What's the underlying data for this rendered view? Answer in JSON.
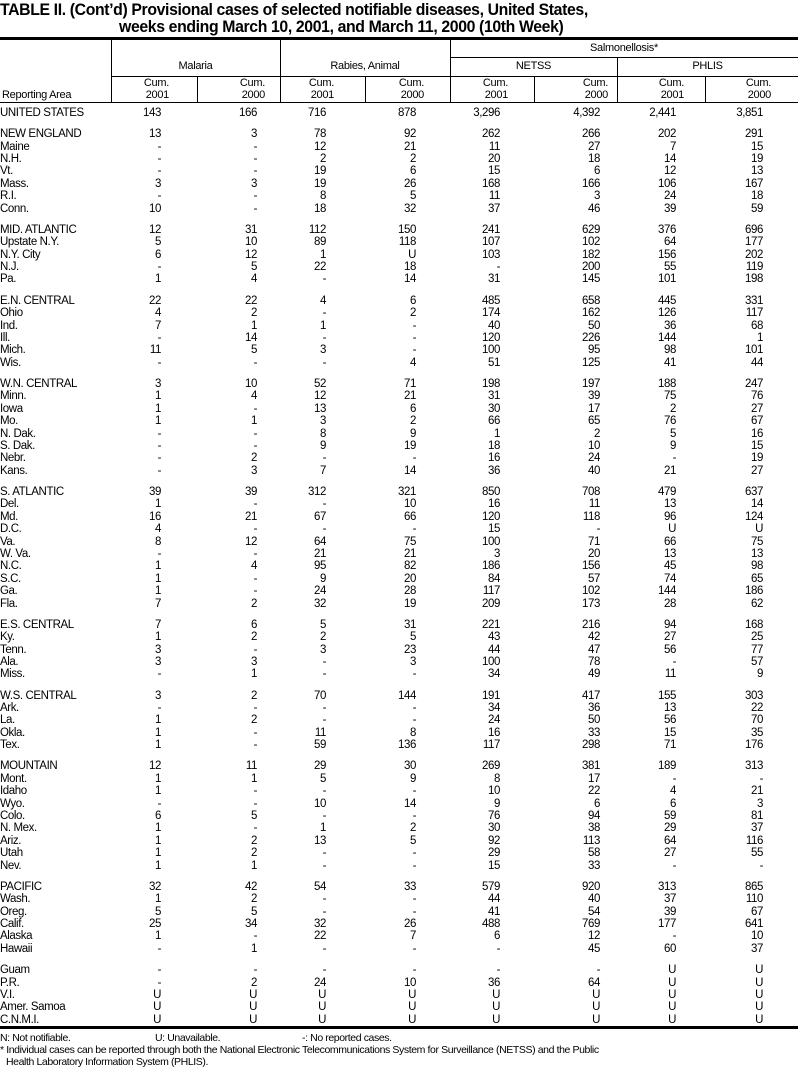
{
  "title": {
    "line1": "TABLE II. (Cont’d) Provisional cases of selected notifiable diseases, United States,",
    "line2": "weeks ending March 10, 2001, and March 11, 2000 (10th Week)"
  },
  "header": {
    "reporting_area": "Reporting Area",
    "malaria": "Malaria",
    "rabies": "Rabies, Animal",
    "salmonellosis": "Salmonellosis*",
    "netss": "NETSS",
    "phlis": "PHLIS",
    "cum_label": "Cum.",
    "years": [
      "2001",
      "2000",
      "2001",
      "2000",
      "2001",
      "2000",
      "2001",
      "2000"
    ]
  },
  "total_row": [
    "UNITED STATES",
    "143",
    "166",
    "716",
    "878",
    "3,296",
    "4,392",
    "2,441",
    "3,851"
  ],
  "groups": [
    [
      [
        "NEW ENGLAND",
        "13",
        "3",
        "78",
        "92",
        "262",
        "266",
        "202",
        "291"
      ],
      [
        "Maine",
        "-",
        "-",
        "12",
        "21",
        "11",
        "27",
        "7",
        "15"
      ],
      [
        "N.H.",
        "-",
        "-",
        "2",
        "2",
        "20",
        "18",
        "14",
        "19"
      ],
      [
        "Vt.",
        "-",
        "-",
        "19",
        "6",
        "15",
        "6",
        "12",
        "13"
      ],
      [
        "Mass.",
        "3",
        "3",
        "19",
        "26",
        "168",
        "166",
        "106",
        "167"
      ],
      [
        "R.I.",
        "-",
        "-",
        "8",
        "5",
        "11",
        "3",
        "24",
        "18"
      ],
      [
        "Conn.",
        "10",
        "-",
        "18",
        "32",
        "37",
        "46",
        "39",
        "59"
      ]
    ],
    [
      [
        "MID. ATLANTIC",
        "12",
        "31",
        "112",
        "150",
        "241",
        "629",
        "376",
        "696"
      ],
      [
        "Upstate N.Y.",
        "5",
        "10",
        "89",
        "118",
        "107",
        "102",
        "64",
        "177"
      ],
      [
        "N.Y. City",
        "6",
        "12",
        "1",
        "U",
        "103",
        "182",
        "156",
        "202"
      ],
      [
        "N.J.",
        "-",
        "5",
        "22",
        "18",
        "-",
        "200",
        "55",
        "119"
      ],
      [
        "Pa.",
        "1",
        "4",
        "-",
        "14",
        "31",
        "145",
        "101",
        "198"
      ]
    ],
    [
      [
        "E.N. CENTRAL",
        "22",
        "22",
        "4",
        "6",
        "485",
        "658",
        "445",
        "331"
      ],
      [
        "Ohio",
        "4",
        "2",
        "-",
        "2",
        "174",
        "162",
        "126",
        "117"
      ],
      [
        "Ind.",
        "7",
        "1",
        "1",
        "-",
        "40",
        "50",
        "36",
        "68"
      ],
      [
        "Ill.",
        "-",
        "14",
        "-",
        "-",
        "120",
        "226",
        "144",
        "1"
      ],
      [
        "Mich.",
        "11",
        "5",
        "3",
        "-",
        "100",
        "95",
        "98",
        "101"
      ],
      [
        "Wis.",
        "-",
        "-",
        "-",
        "4",
        "51",
        "125",
        "41",
        "44"
      ]
    ],
    [
      [
        "W.N. CENTRAL",
        "3",
        "10",
        "52",
        "71",
        "198",
        "197",
        "188",
        "247"
      ],
      [
        "Minn.",
        "1",
        "4",
        "12",
        "21",
        "31",
        "39",
        "75",
        "76"
      ],
      [
        "Iowa",
        "1",
        "-",
        "13",
        "6",
        "30",
        "17",
        "2",
        "27"
      ],
      [
        "Mo.",
        "1",
        "1",
        "3",
        "2",
        "66",
        "65",
        "76",
        "67"
      ],
      [
        "N. Dak.",
        "-",
        "-",
        "8",
        "9",
        "1",
        "2",
        "5",
        "16"
      ],
      [
        "S. Dak.",
        "-",
        "-",
        "9",
        "19",
        "18",
        "10",
        "9",
        "15"
      ],
      [
        "Nebr.",
        "-",
        "2",
        "-",
        "-",
        "16",
        "24",
        "-",
        "19"
      ],
      [
        "Kans.",
        "-",
        "3",
        "7",
        "14",
        "36",
        "40",
        "21",
        "27"
      ]
    ],
    [
      [
        "S. ATLANTIC",
        "39",
        "39",
        "312",
        "321",
        "850",
        "708",
        "479",
        "637"
      ],
      [
        "Del.",
        "1",
        "-",
        "-",
        "10",
        "16",
        "11",
        "13",
        "14"
      ],
      [
        "Md.",
        "16",
        "21",
        "67",
        "66",
        "120",
        "118",
        "96",
        "124"
      ],
      [
        "D.C.",
        "4",
        "-",
        "-",
        "-",
        "15",
        "-",
        "U",
        "U"
      ],
      [
        "Va.",
        "8",
        "12",
        "64",
        "75",
        "100",
        "71",
        "66",
        "75"
      ],
      [
        "W. Va.",
        "-",
        "-",
        "21",
        "21",
        "3",
        "20",
        "13",
        "13"
      ],
      [
        "N.C.",
        "1",
        "4",
        "95",
        "82",
        "186",
        "156",
        "45",
        "98"
      ],
      [
        "S.C.",
        "1",
        "-",
        "9",
        "20",
        "84",
        "57",
        "74",
        "65"
      ],
      [
        "Ga.",
        "1",
        "-",
        "24",
        "28",
        "117",
        "102",
        "144",
        "186"
      ],
      [
        "Fla.",
        "7",
        "2",
        "32",
        "19",
        "209",
        "173",
        "28",
        "62"
      ]
    ],
    [
      [
        "E.S. CENTRAL",
        "7",
        "6",
        "5",
        "31",
        "221",
        "216",
        "94",
        "168"
      ],
      [
        "Ky.",
        "1",
        "2",
        "2",
        "5",
        "43",
        "42",
        "27",
        "25"
      ],
      [
        "Tenn.",
        "3",
        "-",
        "3",
        "23",
        "44",
        "47",
        "56",
        "77"
      ],
      [
        "Ala.",
        "3",
        "3",
        "-",
        "3",
        "100",
        "78",
        "-",
        "57"
      ],
      [
        "Miss.",
        "-",
        "1",
        "-",
        "-",
        "34",
        "49",
        "11",
        "9"
      ]
    ],
    [
      [
        "W.S. CENTRAL",
        "3",
        "2",
        "70",
        "144",
        "191",
        "417",
        "155",
        "303"
      ],
      [
        "Ark.",
        "-",
        "-",
        "-",
        "-",
        "34",
        "36",
        "13",
        "22"
      ],
      [
        "La.",
        "1",
        "2",
        "-",
        "-",
        "24",
        "50",
        "56",
        "70"
      ],
      [
        "Okla.",
        "1",
        "-",
        "11",
        "8",
        "16",
        "33",
        "15",
        "35"
      ],
      [
        "Tex.",
        "1",
        "-",
        "59",
        "136",
        "117",
        "298",
        "71",
        "176"
      ]
    ],
    [
      [
        "MOUNTAIN",
        "12",
        "11",
        "29",
        "30",
        "269",
        "381",
        "189",
        "313"
      ],
      [
        "Mont.",
        "1",
        "1",
        "5",
        "9",
        "8",
        "17",
        "-",
        "-"
      ],
      [
        "Idaho",
        "1",
        "-",
        "-",
        "-",
        "10",
        "22",
        "4",
        "21"
      ],
      [
        "Wyo.",
        "-",
        "-",
        "10",
        "14",
        "9",
        "6",
        "6",
        "3"
      ],
      [
        "Colo.",
        "6",
        "5",
        "-",
        "-",
        "76",
        "94",
        "59",
        "81"
      ],
      [
        "N. Mex.",
        "1",
        "-",
        "1",
        "2",
        "30",
        "38",
        "29",
        "37"
      ],
      [
        "Ariz.",
        "1",
        "2",
        "13",
        "5",
        "92",
        "113",
        "64",
        "116"
      ],
      [
        "Utah",
        "1",
        "2",
        "-",
        "-",
        "29",
        "58",
        "27",
        "55"
      ],
      [
        "Nev.",
        "1",
        "1",
        "-",
        "-",
        "15",
        "33",
        "-",
        "-"
      ]
    ],
    [
      [
        "PACIFIC",
        "32",
        "42",
        "54",
        "33",
        "579",
        "920",
        "313",
        "865"
      ],
      [
        "Wash.",
        "1",
        "2",
        "-",
        "-",
        "44",
        "40",
        "37",
        "110"
      ],
      [
        "Oreg.",
        "5",
        "5",
        "-",
        "-",
        "41",
        "54",
        "39",
        "67"
      ],
      [
        "Calif.",
        "25",
        "34",
        "32",
        "26",
        "488",
        "769",
        "177",
        "641"
      ],
      [
        "Alaska",
        "1",
        "-",
        "22",
        "7",
        "6",
        "12",
        "-",
        "10"
      ],
      [
        "Hawaii",
        "-",
        "1",
        "-",
        "-",
        "-",
        "45",
        "60",
        "37"
      ]
    ],
    [
      [
        "Guam",
        "-",
        "-",
        "-",
        "-",
        "-",
        "-",
        "U",
        "U"
      ],
      [
        "P.R.",
        "-",
        "2",
        "24",
        "10",
        "36",
        "64",
        "U",
        "U"
      ],
      [
        "V.I.",
        "U",
        "U",
        "U",
        "U",
        "U",
        "U",
        "U",
        "U"
      ],
      [
        "Amer. Samoa",
        "U",
        "U",
        "U",
        "U",
        "U",
        "U",
        "U",
        "U"
      ],
      [
        "C.N.M.I.",
        "U",
        "U",
        "U",
        "U",
        "U",
        "U",
        "U",
        "U"
      ]
    ]
  ],
  "footnotes": {
    "legend_n": "N: Not notifiable.",
    "legend_u": "U: Unavailable.",
    "legend_dash": "-: No reported cases.",
    "note_line1": "* Individual cases can be reported through both the National Electronic Telecommunications System for Surveillance (NETSS) and the Public",
    "note_line2": "Health Laboratory Information System (PHLIS)."
  }
}
